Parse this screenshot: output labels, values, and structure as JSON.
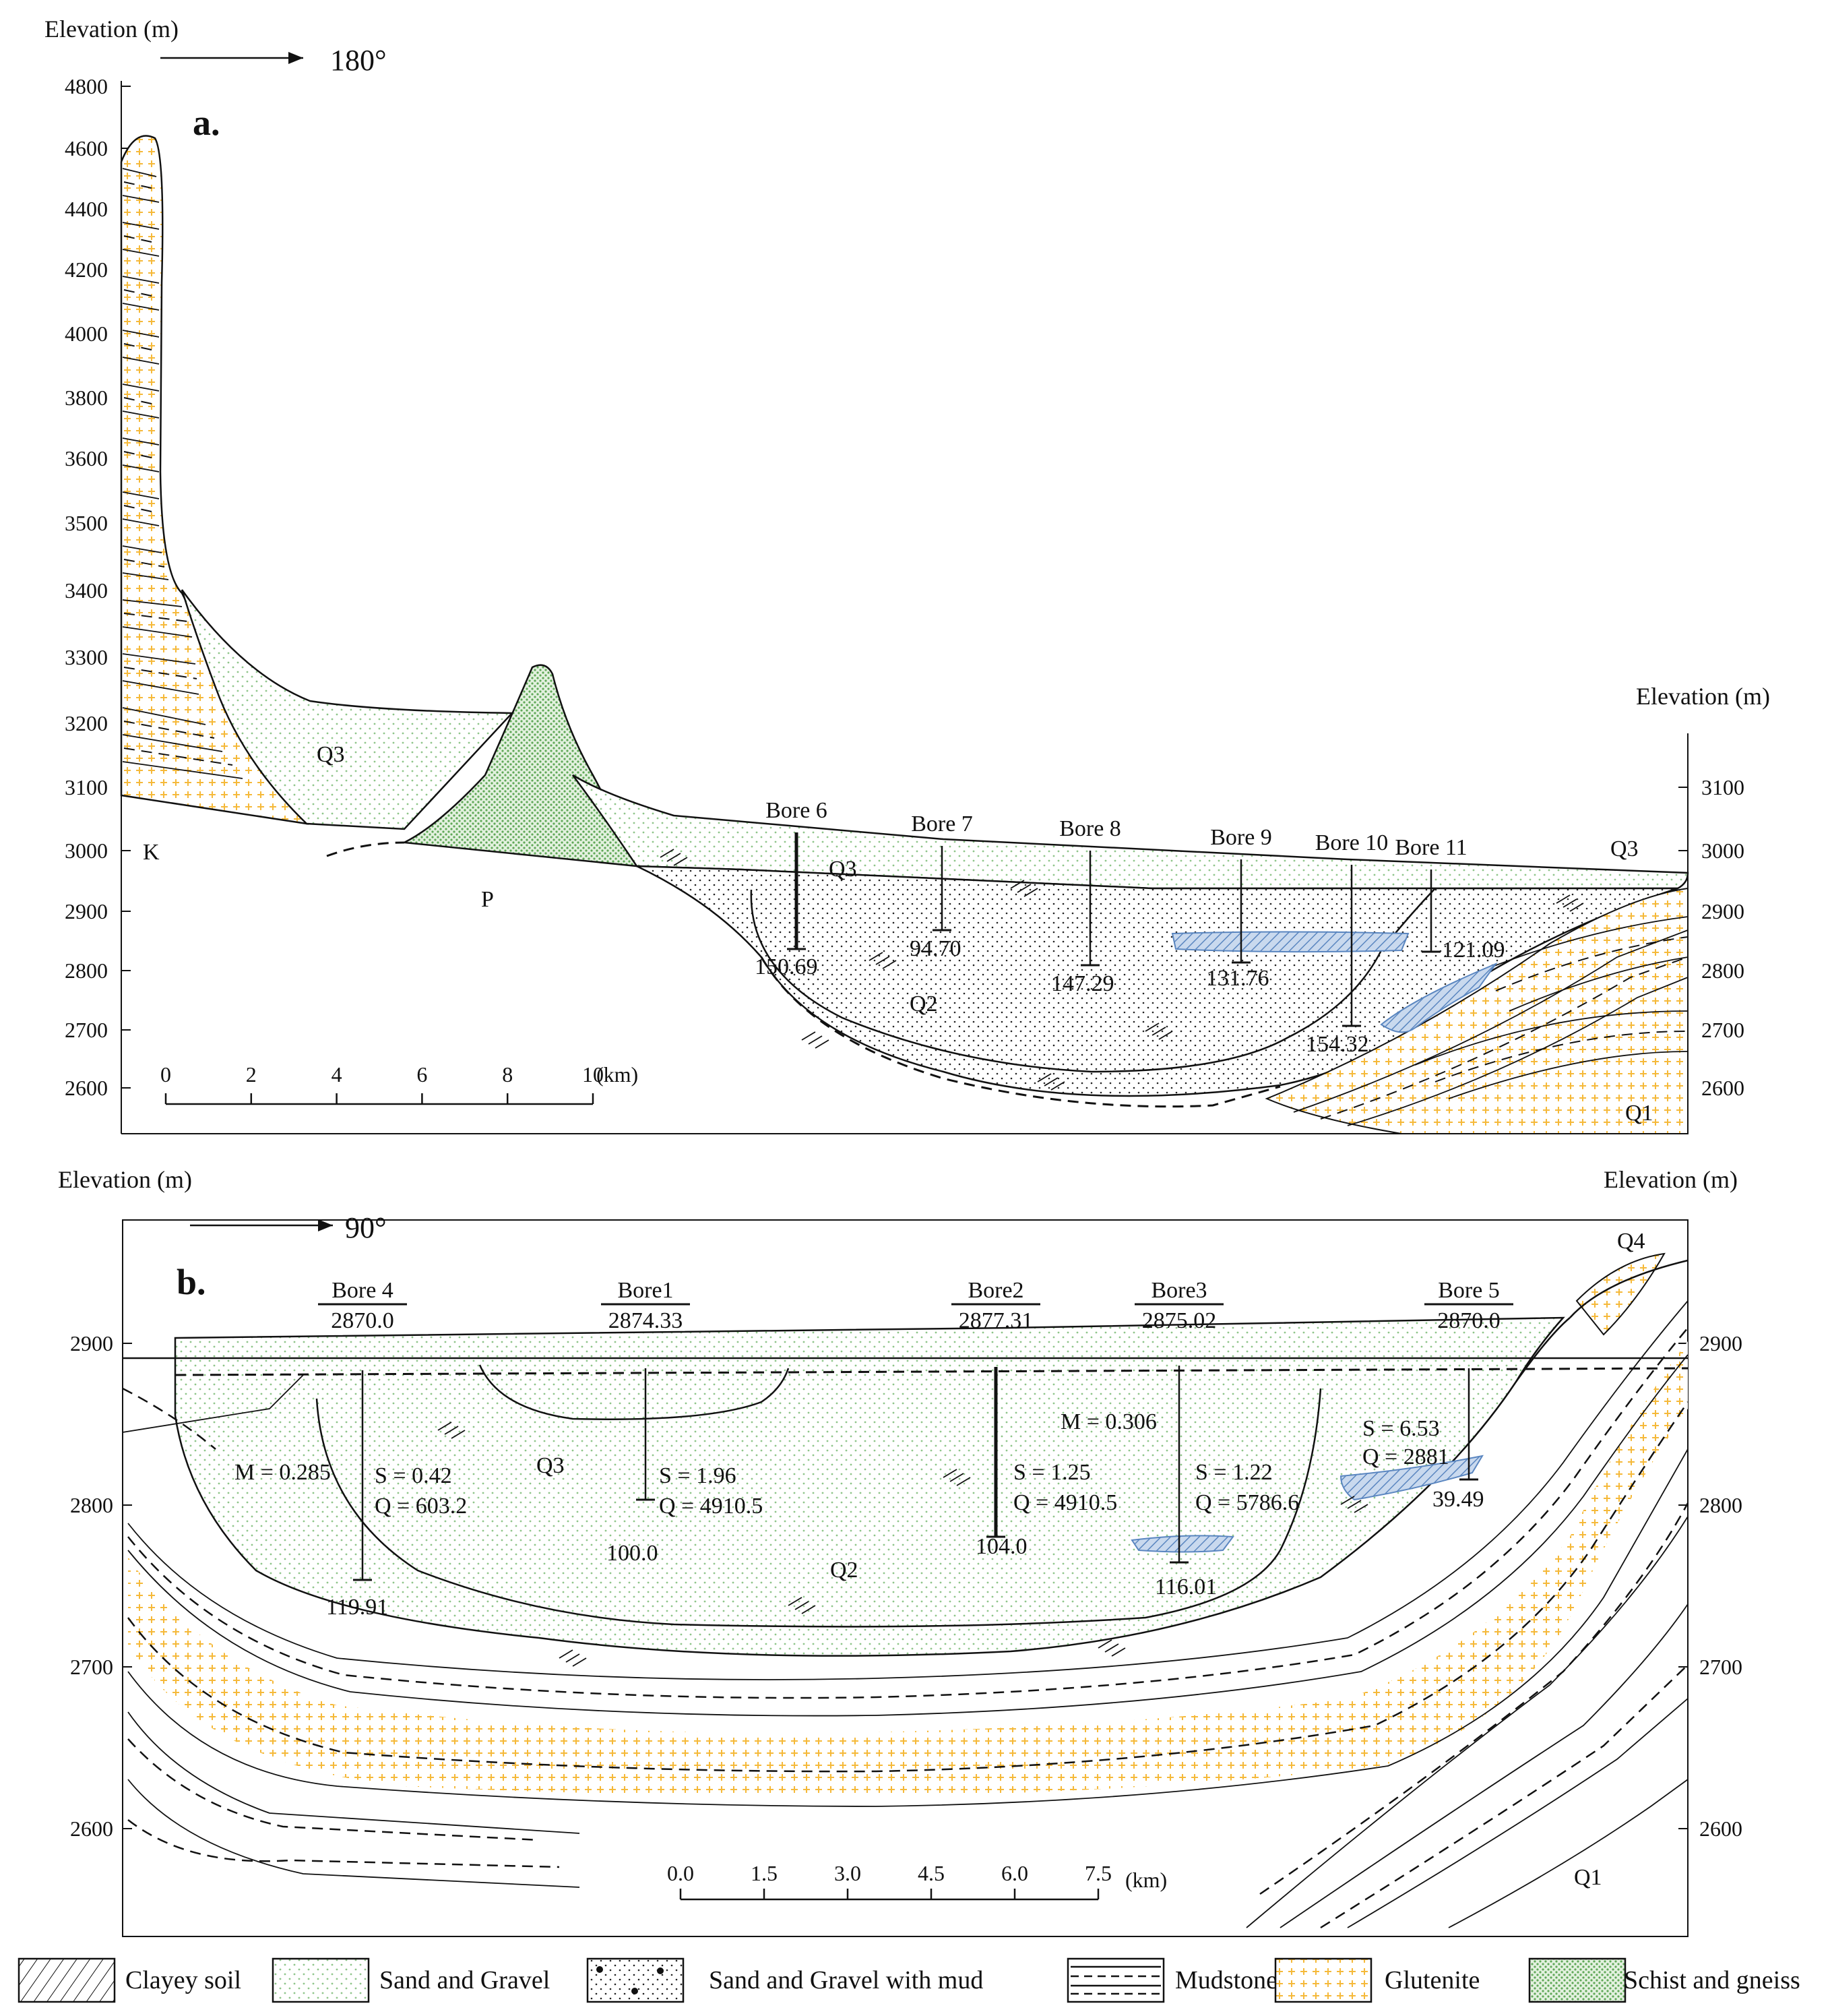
{
  "panel_a": {
    "label": "a.",
    "axis_title_left": "Elevation (m)",
    "axis_title_right": "Elevation (m)",
    "direction": "180°",
    "y_ticks_left": [
      "4800",
      "4600",
      "4400",
      "4200",
      "4000",
      "3800",
      "3600",
      "3500",
      "3400",
      "3300",
      "3200",
      "3100",
      "3000",
      "2900",
      "2800",
      "2700",
      "2600"
    ],
    "y_ticks_right": [
      "3100",
      "3000",
      "2900",
      "2800",
      "2700",
      "2600"
    ],
    "units": [
      "K",
      "P",
      "Q3",
      "Q3",
      "Q3",
      "Q2",
      "Q1"
    ],
    "bores": [
      {
        "name": "Bore 6",
        "depth": "150.69"
      },
      {
        "name": "Bore 7",
        "depth": "94.70"
      },
      {
        "name": "Bore 8",
        "depth": "147.29"
      },
      {
        "name": "Bore 9",
        "depth": "131.76"
      },
      {
        "name": "Bore 10",
        "depth": "154.32"
      },
      {
        "name": "Bore 11",
        "depth": "121.09"
      }
    ],
    "scale_labels": [
      "0",
      "2",
      "4",
      "6",
      "8",
      "10"
    ],
    "scale_unit": "(km)"
  },
  "panel_b": {
    "label": "b.",
    "axis_title_left": "Elevation (m)",
    "axis_title_right": "Elevation (m)",
    "direction": "90°",
    "y_ticks_left": [
      "2900",
      "2800",
      "2700",
      "2600"
    ],
    "y_ticks_right": [
      "2900",
      "2800",
      "2700",
      "2600"
    ],
    "units": [
      "Q4",
      "Q3",
      "Q2",
      "Q1"
    ],
    "bores": [
      {
        "name": "Bore 4",
        "elevation": "2870.0",
        "depth": "119.91"
      },
      {
        "name": "Bore1",
        "elevation": "2874.33",
        "depth": "100.0"
      },
      {
        "name": "Bore2",
        "elevation": "2877.31",
        "depth": "104.0"
      },
      {
        "name": "Bore3",
        "elevation": "2875.02",
        "depth": "116.01"
      },
      {
        "name": "Bore 5",
        "elevation": "2870.0",
        "depth": "39.49"
      }
    ],
    "params": [
      {
        "m": "M = 0.285",
        "s": "S = 0.42",
        "q": "Q = 603.2"
      },
      {
        "s": "S = 1.96",
        "q": "Q = 4910.5"
      },
      {
        "s": "S = 1.25",
        "q": "Q = 4910.5"
      },
      {
        "m": "M = 0.306",
        "s": "S = 1.22",
        "q": "Q = 5786.6"
      },
      {
        "s": "S = 6.53",
        "q": "Q = 2881"
      }
    ],
    "scale_labels": [
      "0.0",
      "1.5",
      "3.0",
      "4.5",
      "6.0",
      "7.5"
    ],
    "scale_unit": "(km)"
  },
  "legend": [
    {
      "name": "Clayey soil",
      "pattern": "diagonal-hatch"
    },
    {
      "name": "Sand and Gravel",
      "pattern": "green-dots",
      "color": "#8fc58a"
    },
    {
      "name": "Sand and Gravel with mud",
      "pattern": "black-dots"
    },
    {
      "name": "Mudstone",
      "pattern": "dashed-lines"
    },
    {
      "name": "Glutenite",
      "pattern": "orange-crosses",
      "color": "#f5b93a"
    },
    {
      "name": "Schist and gneiss",
      "pattern": "dense-green",
      "color": "#5fa857"
    }
  ],
  "colors": {
    "aquifer_blue": "#7ea3d0",
    "sand_green": "#8fc58a",
    "glutenite_orange": "#f5b93a"
  }
}
